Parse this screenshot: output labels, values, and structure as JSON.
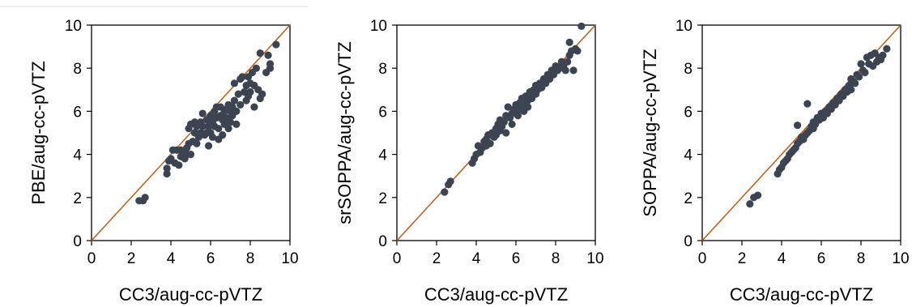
{
  "chart_data": [
    {
      "type": "scatter",
      "xlabel": "CC3/aug-cc-pVTZ",
      "ylabel": "PBE/aug-cc-pVTZ",
      "xlim": [
        0,
        10
      ],
      "ylim": [
        0,
        10
      ],
      "xticks": [
        "0",
        "2",
        "4",
        "6",
        "8",
        "10"
      ],
      "yticks": [
        "0",
        "2",
        "4",
        "6",
        "8",
        "10"
      ],
      "grid": false,
      "reference_line": "y = x",
      "marker_color": "#3c4452",
      "line_color": "#c55a11",
      "points": [
        [
          2.4,
          1.85
        ],
        [
          2.6,
          1.85
        ],
        [
          2.7,
          2.0
        ],
        [
          3.8,
          3.1
        ],
        [
          3.8,
          3.35
        ],
        [
          3.9,
          3.7
        ],
        [
          4.0,
          3.8
        ],
        [
          4.1,
          4.2
        ],
        [
          4.2,
          3.6
        ],
        [
          4.3,
          4.2
        ],
        [
          4.4,
          3.5
        ],
        [
          4.5,
          3.9
        ],
        [
          4.5,
          4.2
        ],
        [
          4.6,
          4.1
        ],
        [
          4.7,
          3.8
        ],
        [
          4.8,
          4.0
        ],
        [
          4.8,
          4.3
        ],
        [
          4.9,
          5.2
        ],
        [
          4.9,
          4.5
        ],
        [
          5.0,
          4.0
        ],
        [
          5.0,
          5.4
        ],
        [
          5.1,
          4.6
        ],
        [
          5.2,
          5.0
        ],
        [
          5.2,
          5.5
        ],
        [
          5.3,
          4.5
        ],
        [
          5.3,
          5.3
        ],
        [
          5.4,
          4.8
        ],
        [
          5.5,
          5.0
        ],
        [
          5.5,
          5.5
        ],
        [
          5.6,
          5.3
        ],
        [
          5.6,
          5.9
        ],
        [
          5.7,
          4.9
        ],
        [
          5.8,
          5.6
        ],
        [
          5.8,
          5.0
        ],
        [
          5.9,
          4.4
        ],
        [
          5.9,
          5.3
        ],
        [
          6.0,
          5.8
        ],
        [
          6.0,
          5.0
        ],
        [
          6.1,
          5.5
        ],
        [
          6.1,
          4.8
        ],
        [
          6.2,
          6.0
        ],
        [
          6.2,
          5.3
        ],
        [
          6.3,
          5.7
        ],
        [
          6.3,
          6.2
        ],
        [
          6.4,
          4.7
        ],
        [
          6.4,
          5.2
        ],
        [
          6.5,
          5.8
        ],
        [
          6.5,
          6.2
        ],
        [
          6.6,
          5.6
        ],
        [
          6.6,
          4.9
        ],
        [
          6.7,
          6.0
        ],
        [
          6.7,
          5.4
        ],
        [
          6.8,
          6.1
        ],
        [
          6.8,
          5.7
        ],
        [
          6.9,
          5.2
        ],
        [
          6.9,
          6.3
        ],
        [
          7.0,
          5.5
        ],
        [
          7.0,
          6.0
        ],
        [
          7.1,
          6.2
        ],
        [
          7.1,
          5.8
        ],
        [
          7.2,
          6.5
        ],
        [
          7.2,
          7.3
        ],
        [
          7.3,
          6.0
        ],
        [
          7.3,
          5.4
        ],
        [
          7.4,
          6.8
        ],
        [
          7.5,
          7.5
        ],
        [
          7.5,
          6.3
        ],
        [
          7.6,
          7.6
        ],
        [
          7.7,
          6.9
        ],
        [
          7.8,
          7.2
        ],
        [
          7.8,
          6.5
        ],
        [
          7.9,
          7.6
        ],
        [
          7.9,
          6.7
        ],
        [
          8.0,
          7.3
        ],
        [
          8.0,
          6.9
        ],
        [
          8.1,
          7.8
        ],
        [
          8.2,
          7.2
        ],
        [
          8.2,
          6.2
        ],
        [
          8.3,
          8.0
        ],
        [
          8.4,
          7.0
        ],
        [
          8.5,
          8.7
        ],
        [
          8.5,
          6.6
        ],
        [
          8.6,
          6.8
        ],
        [
          8.8,
          7.8
        ],
        [
          8.9,
          8.6
        ],
        [
          9.0,
          8.2
        ],
        [
          9.0,
          8.0
        ],
        [
          9.3,
          9.1
        ]
      ]
    },
    {
      "type": "scatter",
      "xlabel": "CC3/aug-cc-pVTZ",
      "ylabel": "srSOPPA/aug-cc-pVTZ",
      "xlim": [
        0,
        10
      ],
      "ylim": [
        0,
        10
      ],
      "xticks": [
        "0",
        "2",
        "4",
        "6",
        "8",
        "10"
      ],
      "yticks": [
        "0",
        "2",
        "4",
        "6",
        "8",
        "10"
      ],
      "grid": false,
      "reference_line": "y = x",
      "marker_color": "#3c4452",
      "line_color": "#c55a11",
      "points": [
        [
          2.4,
          2.25
        ],
        [
          2.6,
          2.6
        ],
        [
          2.7,
          2.75
        ],
        [
          3.8,
          3.6
        ],
        [
          3.9,
          3.8
        ],
        [
          4.0,
          4.0
        ],
        [
          4.1,
          4.4
        ],
        [
          4.2,
          4.1
        ],
        [
          4.3,
          4.3
        ],
        [
          4.4,
          4.6
        ],
        [
          4.5,
          4.4
        ],
        [
          4.5,
          4.7
        ],
        [
          4.6,
          4.9
        ],
        [
          4.7,
          4.5
        ],
        [
          4.8,
          5.0
        ],
        [
          4.9,
          4.8
        ],
        [
          5.0,
          5.2
        ],
        [
          5.0,
          4.9
        ],
        [
          5.1,
          5.4
        ],
        [
          5.2,
          5.1
        ],
        [
          5.2,
          5.6
        ],
        [
          5.3,
          5.3
        ],
        [
          5.4,
          5.5
        ],
        [
          5.5,
          5.0
        ],
        [
          5.5,
          5.8
        ],
        [
          5.6,
          6.2
        ],
        [
          5.7,
          5.7
        ],
        [
          5.8,
          5.9
        ],
        [
          5.8,
          5.4
        ],
        [
          5.9,
          6.1
        ],
        [
          6.0,
          6.0
        ],
        [
          6.0,
          6.3
        ],
        [
          6.1,
          5.8
        ],
        [
          6.2,
          6.4
        ],
        [
          6.2,
          6.1
        ],
        [
          6.3,
          6.6
        ],
        [
          6.4,
          6.3
        ],
        [
          6.4,
          6.0
        ],
        [
          6.5,
          6.7
        ],
        [
          6.6,
          6.5
        ],
        [
          6.6,
          6.2
        ],
        [
          6.7,
          6.9
        ],
        [
          6.8,
          6.6
        ],
        [
          6.9,
          7.0
        ],
        [
          7.0,
          6.8
        ],
        [
          7.0,
          7.2
        ],
        [
          7.1,
          7.0
        ],
        [
          7.2,
          7.3
        ],
        [
          7.3,
          7.1
        ],
        [
          7.4,
          7.5
        ],
        [
          7.5,
          7.3
        ],
        [
          7.6,
          7.7
        ],
        [
          7.7,
          7.5
        ],
        [
          7.8,
          7.9
        ],
        [
          7.9,
          7.7
        ],
        [
          8.0,
          8.1
        ],
        [
          8.1,
          7.9
        ],
        [
          8.2,
          8.0
        ],
        [
          8.3,
          8.3
        ],
        [
          8.4,
          8.1
        ],
        [
          8.5,
          7.9
        ],
        [
          8.6,
          8.3
        ],
        [
          8.7,
          8.6
        ],
        [
          8.7,
          9.2
        ],
        [
          8.8,
          8.8
        ],
        [
          8.9,
          7.9
        ],
        [
          9.0,
          8.9
        ],
        [
          9.1,
          8.8
        ],
        [
          9.3,
          9.95
        ]
      ]
    },
    {
      "type": "scatter",
      "xlabel": "CC3/aug-cc-pVTZ",
      "ylabel": "SOPPA/aug-cc-pVTZ",
      "xlim": [
        0,
        10
      ],
      "ylim": [
        0,
        10
      ],
      "xticks": [
        "0",
        "2",
        "4",
        "6",
        "8",
        "10"
      ],
      "yticks": [
        "0",
        "2",
        "4",
        "6",
        "8",
        "10"
      ],
      "grid": false,
      "reference_line": "y = x",
      "marker_color": "#3c4452",
      "line_color": "#c55a11",
      "points": [
        [
          2.4,
          1.7
        ],
        [
          2.6,
          2.0
        ],
        [
          2.8,
          2.1
        ],
        [
          3.8,
          3.1
        ],
        [
          3.9,
          3.3
        ],
        [
          4.0,
          3.4
        ],
        [
          4.1,
          3.6
        ],
        [
          4.2,
          3.7
        ],
        [
          4.3,
          3.8
        ],
        [
          4.4,
          4.0
        ],
        [
          4.5,
          4.1
        ],
        [
          4.6,
          4.2
        ],
        [
          4.7,
          4.3
        ],
        [
          4.8,
          4.5
        ],
        [
          4.8,
          5.35
        ],
        [
          4.9,
          4.6
        ],
        [
          5.0,
          4.8
        ],
        [
          5.1,
          4.7
        ],
        [
          5.2,
          4.9
        ],
        [
          5.3,
          5.0
        ],
        [
          5.3,
          6.35
        ],
        [
          5.4,
          5.1
        ],
        [
          5.5,
          5.3
        ],
        [
          5.6,
          5.2
        ],
        [
          5.6,
          5.5
        ],
        [
          5.7,
          5.4
        ],
        [
          5.8,
          5.7
        ],
        [
          5.9,
          5.6
        ],
        [
          6.0,
          5.8
        ],
        [
          6.0,
          5.9
        ],
        [
          6.1,
          5.7
        ],
        [
          6.2,
          6.0
        ],
        [
          6.3,
          5.9
        ],
        [
          6.4,
          6.2
        ],
        [
          6.5,
          6.1
        ],
        [
          6.6,
          6.4
        ],
        [
          6.7,
          6.3
        ],
        [
          6.8,
          6.6
        ],
        [
          6.9,
          6.5
        ],
        [
          7.0,
          6.8
        ],
        [
          7.1,
          6.7
        ],
        [
          7.2,
          7.0
        ],
        [
          7.3,
          6.9
        ],
        [
          7.4,
          7.2
        ],
        [
          7.5,
          7.5
        ],
        [
          7.5,
          7.0
        ],
        [
          7.6,
          7.4
        ],
        [
          7.7,
          7.3
        ],
        [
          7.8,
          7.7
        ],
        [
          7.9,
          7.6
        ],
        [
          8.0,
          8.2
        ],
        [
          8.1,
          7.9
        ],
        [
          8.2,
          7.8
        ],
        [
          8.3,
          8.5
        ],
        [
          8.4,
          8.2
        ],
        [
          8.5,
          8.6
        ],
        [
          8.6,
          8.1
        ],
        [
          8.7,
          8.7
        ],
        [
          8.8,
          8.3
        ],
        [
          8.9,
          8.5
        ],
        [
          9.0,
          8.4
        ],
        [
          9.1,
          8.6
        ],
        [
          9.3,
          8.9
        ]
      ]
    }
  ]
}
